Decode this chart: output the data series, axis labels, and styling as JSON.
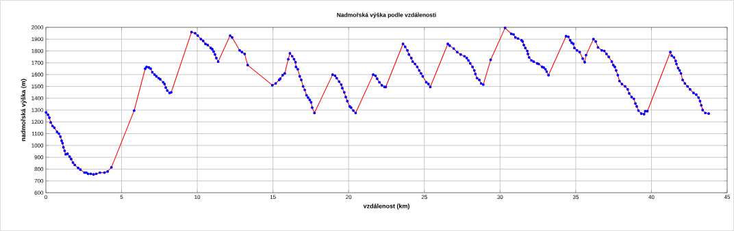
{
  "chart_data": {
    "type": "line",
    "title": "Nadmořská výška podle vzdálenosti",
    "xlabel": "vzdálenost (km)",
    "ylabel": "nadmořská výška (m)",
    "xlim": [
      0,
      45
    ],
    "xticks": [
      0,
      5,
      10,
      15,
      20,
      25,
      30,
      35,
      40,
      45
    ],
    "ylim": [
      600,
      2000
    ],
    "yticks": [
      600,
      700,
      800,
      900,
      1000,
      1100,
      1200,
      1300,
      1400,
      1500,
      1600,
      1700,
      1800,
      1900,
      2000
    ],
    "grid": true,
    "marker": "circle",
    "line_style": "solid",
    "series": [
      {
        "color": "#ff0000",
        "x": [
          0.01,
          0.14,
          0.23,
          0.32,
          0.44,
          0.56,
          0.74,
          0.86,
          0.96,
          1.04,
          1.1,
          1.16,
          1.24,
          1.31,
          1.43,
          1.57,
          1.67,
          1.79,
          1.91,
          2.13,
          2.28,
          2.55,
          2.67,
          2.79,
          2.97,
          3.15,
          3.33,
          3.57,
          3.87,
          4.08,
          4.33,
          5.83,
          6.56,
          6.65,
          6.8,
          6.92,
          7.03,
          7.18,
          7.3,
          7.45,
          7.55,
          7.75,
          7.84,
          7.92,
          8.02,
          8.17,
          8.28,
          9.62,
          9.86,
          10.03,
          10.24,
          10.39,
          10.54,
          10.69,
          10.89,
          10.99,
          11.08,
          11.17,
          11.26,
          11.38,
          12.17,
          12.3,
          12.8,
          12.95,
          13.13,
          13.33,
          14.96,
          15.18,
          15.41,
          15.48,
          15.64,
          15.78,
          16.01,
          16.12,
          16.27,
          16.39,
          16.49,
          16.52,
          16.64,
          16.77,
          16.87,
          16.99,
          17.1,
          17.22,
          17.32,
          17.43,
          17.52,
          17.59,
          17.74,
          18.94,
          19.1,
          19.21,
          19.37,
          19.51,
          19.58,
          19.71,
          19.81,
          19.91,
          20.07,
          20.16,
          20.31,
          20.46,
          21.62,
          21.77,
          21.88,
          22.03,
          22.19,
          22.37,
          22.45,
          23.59,
          23.73,
          23.88,
          23.98,
          24.14,
          24.23,
          24.38,
          24.53,
          24.66,
          24.78,
          24.89,
          25.13,
          25.27,
          25.39,
          26.55,
          26.67,
          26.94,
          27.17,
          27.4,
          27.65,
          27.8,
          27.91,
          28.03,
          28.18,
          28.3,
          28.37,
          28.48,
          28.63,
          28.75,
          28.89,
          29.38,
          30.33,
          30.74,
          30.89,
          31.01,
          31.19,
          31.42,
          31.49,
          31.57,
          31.67,
          31.8,
          31.84,
          31.92,
          32.07,
          32.22,
          32.45,
          32.55,
          32.78,
          32.88,
          33.0,
          33.08,
          33.2,
          34.36,
          34.51,
          34.63,
          34.73,
          34.84,
          34.91,
          35.08,
          35.26,
          35.46,
          35.59,
          35.68,
          36.17,
          36.32,
          36.47,
          36.72,
          36.89,
          37.03,
          37.18,
          37.38,
          37.48,
          37.58,
          37.67,
          37.78,
          37.89,
          38.05,
          38.26,
          38.43,
          38.53,
          38.69,
          38.84,
          38.94,
          39.03,
          39.14,
          39.33,
          39.51,
          39.59,
          39.73,
          41.25,
          41.34,
          41.49,
          41.6,
          41.65,
          41.76,
          41.86,
          41.95,
          42.06,
          42.21,
          42.38,
          42.55,
          42.78,
          42.96,
          43.11,
          43.21,
          43.29,
          43.38,
          43.56,
          43.78
        ],
        "values": [
          1280,
          1260,
          1235,
          1195,
          1165,
          1150,
          1115,
          1100,
          1075,
          1040,
          1020,
          985,
          955,
          925,
          930,
          905,
          885,
          855,
          835,
          810,
          795,
          770,
          770,
          760,
          760,
          755,
          760,
          770,
          770,
          780,
          815,
          1295,
          1650,
          1665,
          1660,
          1650,
          1620,
          1600,
          1585,
          1570,
          1560,
          1535,
          1520,
          1490,
          1465,
          1445,
          1450,
          1960,
          1950,
          1930,
          1900,
          1885,
          1860,
          1850,
          1825,
          1815,
          1795,
          1770,
          1740,
          1710,
          1930,
          1915,
          1805,
          1790,
          1775,
          1680,
          1510,
          1525,
          1555,
          1565,
          1595,
          1610,
          1730,
          1780,
          1755,
          1730,
          1705,
          1665,
          1645,
          1585,
          1555,
          1500,
          1470,
          1425,
          1405,
          1385,
          1365,
          1320,
          1275,
          1600,
          1590,
          1570,
          1540,
          1515,
          1485,
          1450,
          1410,
          1375,
          1330,
          1320,
          1295,
          1275,
          1600,
          1590,
          1565,
          1535,
          1510,
          1495,
          1495,
          1860,
          1835,
          1805,
          1770,
          1740,
          1710,
          1690,
          1665,
          1635,
          1610,
          1585,
          1535,
          1520,
          1495,
          1860,
          1845,
          1820,
          1790,
          1770,
          1755,
          1740,
          1720,
          1695,
          1665,
          1635,
          1605,
          1570,
          1555,
          1525,
          1515,
          1725,
          1995,
          1945,
          1940,
          1915,
          1905,
          1890,
          1880,
          1850,
          1825,
          1800,
          1775,
          1745,
          1720,
          1710,
          1695,
          1690,
          1665,
          1660,
          1645,
          1625,
          1595,
          1925,
          1920,
          1890,
          1870,
          1860,
          1825,
          1805,
          1790,
          1735,
          1705,
          1765,
          1900,
          1880,
          1830,
          1805,
          1800,
          1775,
          1750,
          1710,
          1680,
          1665,
          1635,
          1595,
          1545,
          1520,
          1500,
          1475,
          1440,
          1410,
          1395,
          1355,
          1330,
          1295,
          1270,
          1265,
          1290,
          1290,
          1790,
          1760,
          1745,
          1715,
          1690,
          1655,
          1635,
          1610,
          1555,
          1525,
          1500,
          1475,
          1445,
          1430,
          1405,
          1375,
          1340,
          1300,
          1275,
          1270
        ]
      }
    ]
  }
}
